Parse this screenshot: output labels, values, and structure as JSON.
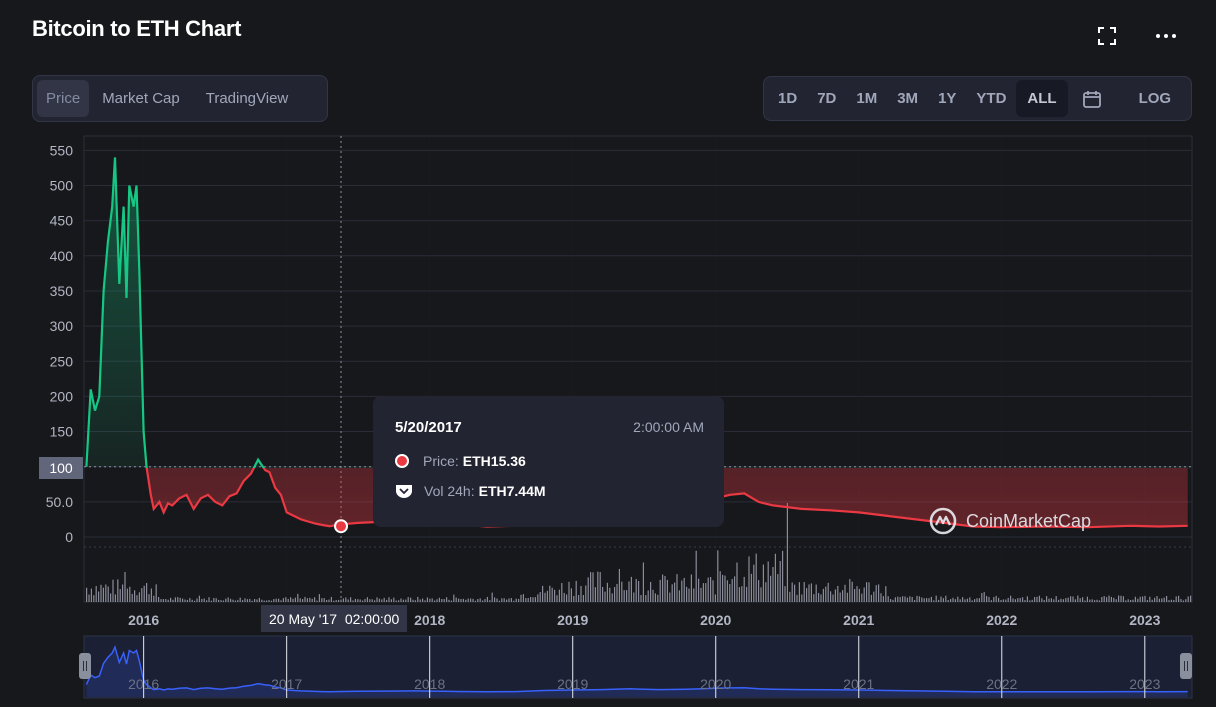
{
  "header": {
    "title": "Bitcoin to ETH Chart"
  },
  "view_tabs": [
    {
      "label": "Price",
      "active": true
    },
    {
      "label": "Market Cap",
      "active": false
    },
    {
      "label": "TradingView",
      "active": false
    }
  ],
  "range_tabs": [
    {
      "label": "1D",
      "active": false
    },
    {
      "label": "7D",
      "active": false
    },
    {
      "label": "1M",
      "active": false
    },
    {
      "label": "3M",
      "active": false
    },
    {
      "label": "1Y",
      "active": false
    },
    {
      "label": "YTD",
      "active": false
    },
    {
      "label": "ALL",
      "active": true
    }
  ],
  "log_label": "LOG",
  "icons": [
    "fullscreen-icon",
    "more-icon",
    "calendar-icon"
  ],
  "colors": {
    "up": "#16c784",
    "down": "#ea3943",
    "navigator_line": "#3861fb",
    "background": "#17181b",
    "panel": "#222531"
  },
  "tooltip": {
    "date": "5/20/2017",
    "time": "2:00:00 AM",
    "price_label": "Price:",
    "price_value": "ETH15.36",
    "volume_label": "Vol 24h:",
    "volume_value": "ETH7.44M"
  },
  "crosshair": {
    "x_label": "20 May '17  02:00:00",
    "y_label": "100"
  },
  "watermark": "CoinMarketCap",
  "chart_data": {
    "type": "area",
    "title": "Bitcoin to ETH Chart",
    "y_ticks": [
      "550",
      "500",
      "450",
      "400",
      "350",
      "300",
      "250",
      "200",
      "150",
      "100",
      "50.0",
      "0"
    ],
    "x_ticks": [
      "2016",
      "2017",
      "2018",
      "2019",
      "2020",
      "2021",
      "2022",
      "2023"
    ],
    "ylim": [
      -15,
      560
    ],
    "baseline": 100,
    "grid": true,
    "series": [
      {
        "x": [
          2015.6,
          2015.63,
          2015.66,
          2015.69,
          2015.72,
          2015.75,
          2015.78,
          2015.8,
          2015.83,
          2015.86,
          2015.88,
          2015.9,
          2015.93,
          2015.95,
          2015.97,
          2016.0,
          2016.02,
          2016.05,
          2016.07,
          2016.09,
          2016.11,
          2016.14,
          2016.17,
          2016.2,
          2016.25,
          2016.3,
          2016.35,
          2016.4,
          2016.45,
          2016.5,
          2016.55,
          2016.6,
          2016.65,
          2016.7,
          2016.75,
          2016.8,
          2016.85,
          2016.88,
          2016.92,
          2016.96,
          2017.0,
          2017.05,
          2017.1,
          2017.15,
          2017.2,
          2017.25,
          2017.3,
          2017.38,
          2017.5,
          2017.7,
          2017.9,
          2018.0,
          2018.1,
          2018.2,
          2018.4,
          2018.6,
          2018.8,
          2019.0,
          2019.2,
          2019.4,
          2019.6,
          2019.8,
          2020.0,
          2020.1,
          2020.2,
          2020.3,
          2020.4,
          2020.6,
          2020.8,
          2021.0,
          2021.2,
          2021.4,
          2021.6,
          2021.8,
          2022.0,
          2022.3,
          2022.6,
          2022.9,
          2023.1,
          2023.3
        ],
        "y": [
          100,
          210,
          180,
          200,
          350,
          420,
          470,
          540,
          360,
          470,
          340,
          500,
          470,
          500,
          380,
          150,
          100,
          60,
          40,
          45,
          50,
          35,
          48,
          45,
          55,
          60,
          40,
          55,
          60,
          50,
          45,
          58,
          62,
          80,
          90,
          110,
          95,
          92,
          70,
          60,
          35,
          30,
          25,
          22,
          19,
          17,
          15.36,
          18,
          20,
          22,
          25,
          22,
          20,
          18,
          15,
          16,
          30,
          35,
          40,
          50,
          40,
          45,
          55,
          60,
          62,
          50,
          45,
          40,
          38,
          35,
          30,
          25,
          20,
          15,
          14,
          15,
          14,
          16,
          15,
          16
        ],
        "name": "",
        "note_unused": ""
      }
    ],
    "volume_note": "",
    "xlabel": "",
    "ylabel": ""
  }
}
